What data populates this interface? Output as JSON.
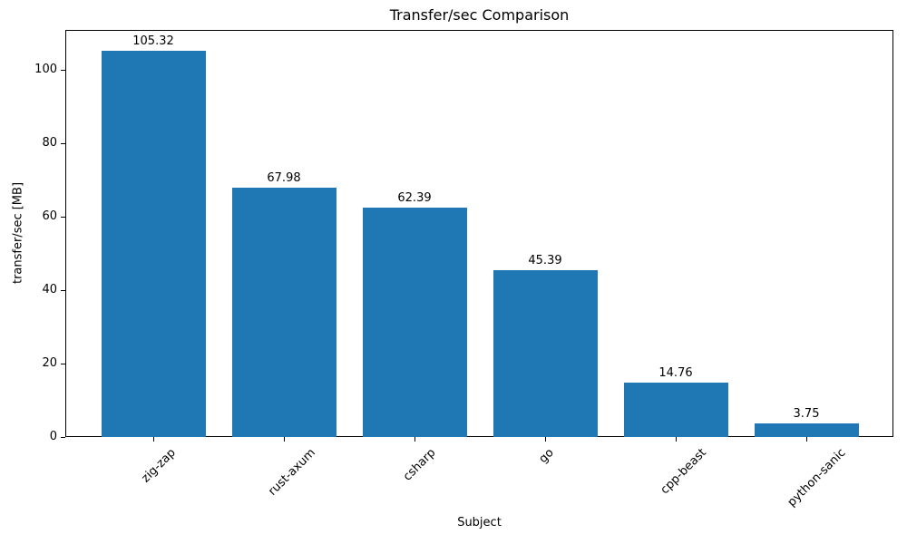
{
  "chart_data": {
    "type": "bar",
    "title": "Transfer/sec Comparison",
    "xlabel": "Subject",
    "ylabel": "transfer/sec [MB]",
    "categories": [
      "zig-zap",
      "rust-axum",
      "csharp",
      "go",
      "cpp-beast",
      "python-sanic"
    ],
    "values": [
      105.32,
      67.98,
      62.39,
      45.39,
      14.76,
      3.75
    ],
    "value_labels": [
      "105.32",
      "67.98",
      "62.39",
      "45.39",
      "14.76",
      "3.75"
    ],
    "yticks": [
      0,
      20,
      40,
      60,
      80,
      100
    ],
    "ylim": [
      0,
      110.9
    ],
    "bar_color": "#1f77b4",
    "grid": false,
    "legend_position": "none"
  }
}
